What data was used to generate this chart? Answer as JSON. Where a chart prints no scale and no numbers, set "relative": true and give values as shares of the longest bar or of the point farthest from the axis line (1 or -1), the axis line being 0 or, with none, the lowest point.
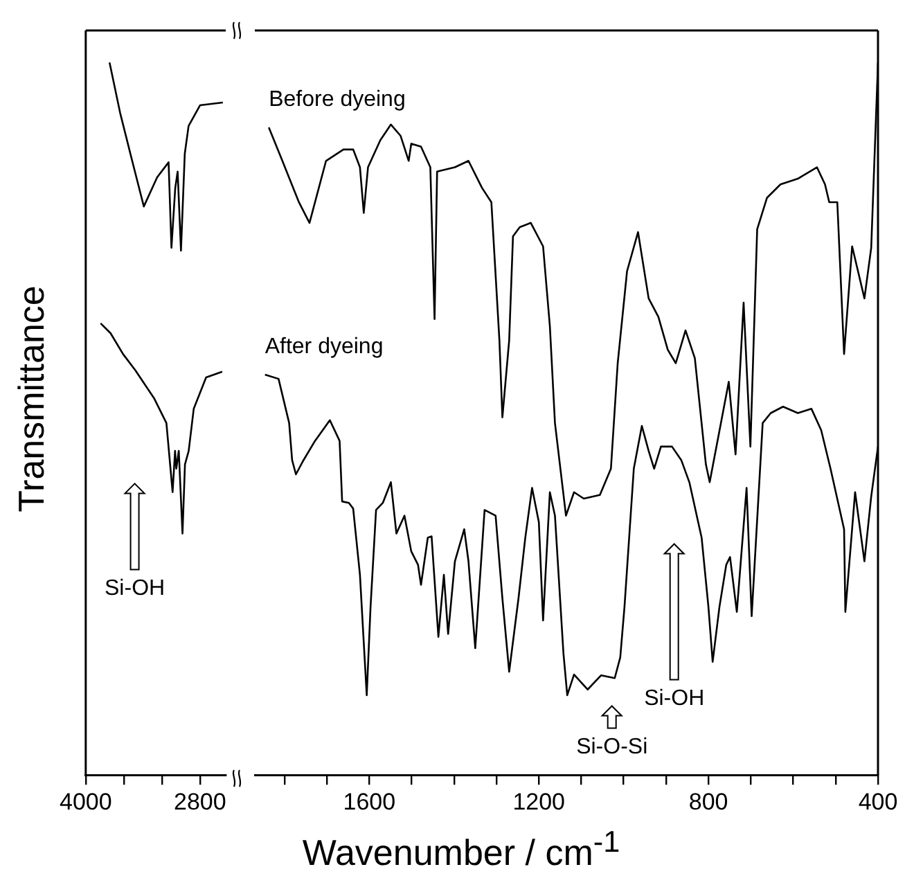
{
  "chart_data": [
    {
      "type": "line",
      "ylabel": "Transmittance",
      "relative": true,
      "xlim": [
        4000,
        2530
      ],
      "xticks": [
        4000,
        {
          "value": 3600,
          "label": null
        },
        {
          "value": 3200,
          "label": null
        },
        2800
      ],
      "annotations": [
        "Si-OH"
      ],
      "series": [
        {
          "color": "#000000",
          "x": [
            3750,
            3640,
            3520,
            3390,
            3250,
            3130,
            3100,
            3060,
            3035,
            3000,
            2960,
            2920,
            2800,
            2560
          ],
          "values": [
            1.0,
            0.93,
            0.866,
            0.798,
            0.839,
            0.86,
            0.74,
            0.824,
            0.847,
            0.736,
            0.872,
            0.911,
            0.94,
            0.944
          ]
        },
        {
          "color": "#000000",
          "x": [
            3844,
            3739,
            3609,
            3479,
            3283,
            3153,
            3088,
            3062,
            3049,
            3023,
            2984,
            2958,
            2919,
            2866,
            2736,
            2567
          ],
          "values": [
            0.634,
            0.62,
            0.591,
            0.568,
            0.529,
            0.494,
            0.397,
            0.455,
            0.43,
            0.455,
            0.339,
            0.436,
            0.455,
            0.514,
            0.558,
            0.566
          ]
        }
      ]
    },
    {
      "type": "line",
      "xlabel": "Wavenumber / cm$^{-1}$",
      "relative": true,
      "xlim": [
        1870,
        400
      ],
      "xticks": [
        {
          "value": 1800,
          "label": null
        },
        {
          "value": 1700,
          "label": null
        },
        1600,
        {
          "value": 1500,
          "label": null
        },
        {
          "value": 1400,
          "label": null
        },
        {
          "value": 1300,
          "label": null
        },
        1200,
        {
          "value": 1100,
          "label": null
        },
        {
          "value": 1000,
          "label": null
        },
        {
          "value": 900,
          "label": null
        },
        800,
        {
          "value": 700,
          "label": null
        },
        {
          "value": 600,
          "label": null
        },
        {
          "value": 500,
          "label": null
        },
        400
      ],
      "annotations": [
        "Si-O-Si",
        "Si-OH"
      ],
      "series": [
        {
          "name": "Before dyeing",
          "color": "#000000",
          "x": [
            1837,
            1805,
            1766,
            1741,
            1702,
            1661,
            1638,
            1622,
            1613,
            1603,
            1574,
            1549,
            1526,
            1507,
            1501,
            1478,
            1456,
            1446,
            1440,
            1398,
            1366,
            1334,
            1312,
            1293,
            1286,
            1270,
            1261,
            1245,
            1219,
            1190,
            1174,
            1162,
            1136,
            1117,
            1094,
            1056,
            1030,
            1014,
            992,
            966,
            941,
            918,
            896,
            877,
            854,
            832,
            806,
            797,
            752,
            736,
            717,
            701,
            685,
            662,
            630,
            589,
            544,
            525,
            515,
            496,
            480,
            461,
            432,
            416,
            400
          ],
          "values": [
            0.909,
            0.862,
            0.804,
            0.775,
            0.862,
            0.878,
            0.878,
            0.853,
            0.789,
            0.853,
            0.891,
            0.913,
            0.897,
            0.862,
            0.886,
            0.882,
            0.853,
            0.64,
            0.847,
            0.853,
            0.862,
            0.824,
            0.804,
            0.61,
            0.502,
            0.61,
            0.756,
            0.769,
            0.775,
            0.742,
            0.63,
            0.494,
            0.364,
            0.397,
            0.388,
            0.393,
            0.43,
            0.578,
            0.707,
            0.762,
            0.669,
            0.643,
            0.597,
            0.578,
            0.624,
            0.585,
            0.436,
            0.411,
            0.552,
            0.45,
            0.663,
            0.461,
            0.766,
            0.81,
            0.829,
            0.837,
            0.853,
            0.829,
            0.804,
            0.804,
            0.591,
            0.742,
            0.669,
            0.74,
            1.0
          ]
        },
        {
          "name": "After dyeing",
          "color": "#000000",
          "x": [
            1846,
            1814,
            1789,
            1782,
            1773,
            1757,
            1728,
            1693,
            1670,
            1664,
            1648,
            1638,
            1622,
            1606,
            1597,
            1584,
            1568,
            1549,
            1536,
            1517,
            1501,
            1485,
            1478,
            1462,
            1453,
            1437,
            1424,
            1414,
            1398,
            1376,
            1366,
            1350,
            1328,
            1302,
            1286,
            1270,
            1248,
            1232,
            1216,
            1200,
            1190,
            1174,
            1162,
            1142,
            1133,
            1117,
            1085,
            1053,
            1021,
            1008,
            998,
            976,
            957,
            941,
            928,
            912,
            886,
            864,
            845,
            816,
            800,
            790,
            774,
            758,
            749,
            733,
            710,
            698,
            672,
            653,
            624,
            589,
            557,
            534,
            512,
            480,
            477,
            454,
            432,
            416,
            400
          ],
          "values": [
            0.562,
            0.556,
            0.494,
            0.442,
            0.422,
            0.44,
            0.469,
            0.498,
            0.469,
            0.384,
            0.382,
            0.374,
            0.281,
            0.112,
            0.236,
            0.372,
            0.382,
            0.411,
            0.339,
            0.364,
            0.314,
            0.295,
            0.267,
            0.333,
            0.335,
            0.194,
            0.281,
            0.198,
            0.3,
            0.345,
            0.3,
            0.178,
            0.372,
            0.364,
            0.248,
            0.145,
            0.248,
            0.333,
            0.403,
            0.355,
            0.217,
            0.397,
            0.364,
            0.171,
            0.112,
            0.141,
            0.12,
            0.14,
            0.136,
            0.165,
            0.236,
            0.43,
            0.49,
            0.455,
            0.43,
            0.461,
            0.461,
            0.442,
            0.411,
            0.333,
            0.236,
            0.159,
            0.236,
            0.295,
            0.306,
            0.229,
            0.403,
            0.223,
            0.494,
            0.508,
            0.517,
            0.508,
            0.514,
            0.484,
            0.43,
            0.345,
            0.229,
            0.397,
            0.3,
            0.391,
            0.461
          ]
        }
      ]
    }
  ]
}
